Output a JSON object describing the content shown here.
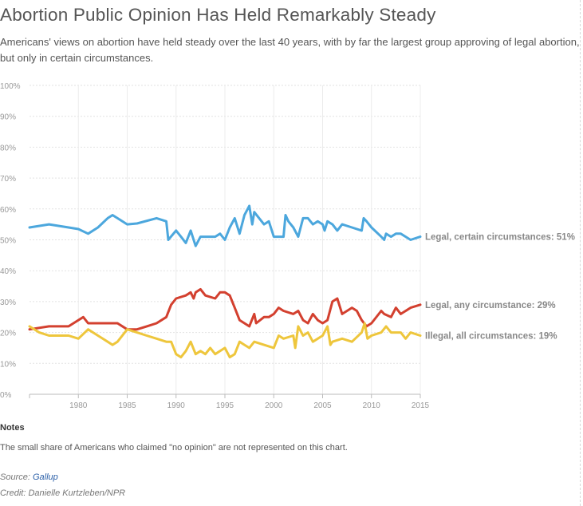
{
  "header": {
    "title": "Abortion Public Opinion Has Held Remarkably Steady",
    "subtitle": "Americans' views on abortion have held steady over the last 40 years, with by far the largest group approving of legal abortion, but only in certain circumstances."
  },
  "chart_data": {
    "type": "line",
    "title": "",
    "xlabel": "",
    "ylabel": "",
    "xlim": [
      1975,
      2015
    ],
    "ylim": [
      0,
      100
    ],
    "x_ticks": [
      1980,
      1985,
      1990,
      1995,
      2000,
      2005,
      2010,
      2015
    ],
    "y_ticks": [
      "0%",
      "10%",
      "20%",
      "30%",
      "40%",
      "50%",
      "60%",
      "70%",
      "80%",
      "90%",
      "100%"
    ],
    "grid": true,
    "legend": "end-of-line labels",
    "series": [
      {
        "name": "Legal, certain circumstances",
        "label": "Legal, certain circumstances: 51%",
        "color": "#4ca7dd",
        "points": [
          [
            1975,
            54
          ],
          [
            1977,
            55
          ],
          [
            1979,
            54
          ],
          [
            1980,
            53.5
          ],
          [
            1981,
            52
          ],
          [
            1982,
            54
          ],
          [
            1983,
            57
          ],
          [
            1983.5,
            58
          ],
          [
            1984,
            57
          ],
          [
            1985,
            55
          ],
          [
            1986,
            55.3
          ],
          [
            1988,
            57
          ],
          [
            1989,
            56
          ],
          [
            1989.2,
            50
          ],
          [
            1990,
            53
          ],
          [
            1990.5,
            51
          ],
          [
            1991,
            49
          ],
          [
            1991.5,
            53
          ],
          [
            1992,
            48
          ],
          [
            1992.5,
            51
          ],
          [
            1993,
            51
          ],
          [
            1994,
            51
          ],
          [
            1994.5,
            52
          ],
          [
            1995,
            50
          ],
          [
            1995.5,
            54
          ],
          [
            1996,
            57
          ],
          [
            1996.5,
            52
          ],
          [
            1997,
            58
          ],
          [
            1997.5,
            61
          ],
          [
            1997.8,
            55
          ],
          [
            1998,
            59
          ],
          [
            1999,
            55
          ],
          [
            1999.5,
            56
          ],
          [
            2000,
            51
          ],
          [
            2001,
            51
          ],
          [
            2001.2,
            58
          ],
          [
            2001.5,
            56
          ],
          [
            2002,
            54
          ],
          [
            2002.5,
            51
          ],
          [
            2003,
            57
          ],
          [
            2003.5,
            57
          ],
          [
            2004,
            55
          ],
          [
            2004.5,
            56
          ],
          [
            2005,
            55
          ],
          [
            2005.2,
            53
          ],
          [
            2005.5,
            56
          ],
          [
            2006,
            55
          ],
          [
            2006.5,
            53
          ],
          [
            2007,
            55
          ],
          [
            2008,
            54
          ],
          [
            2009,
            53
          ],
          [
            2009.2,
            57
          ],
          [
            2009.5,
            56
          ],
          [
            2010,
            54
          ],
          [
            2011,
            51
          ],
          [
            2011.3,
            50
          ],
          [
            2011.5,
            52
          ],
          [
            2012,
            51
          ],
          [
            2012.5,
            52
          ],
          [
            2013,
            52
          ],
          [
            2014,
            50
          ],
          [
            2015,
            51
          ]
        ]
      },
      {
        "name": "Legal, any circumstance",
        "label": "Legal, any circumstance: 29%",
        "color": "#d3402f",
        "points": [
          [
            1975,
            21
          ],
          [
            1977,
            22
          ],
          [
            1979,
            22
          ],
          [
            1980,
            24
          ],
          [
            1980.5,
            25
          ],
          [
            1981,
            23
          ],
          [
            1982,
            23
          ],
          [
            1983,
            23
          ],
          [
            1984,
            23
          ],
          [
            1985,
            21
          ],
          [
            1986,
            21
          ],
          [
            1987,
            22
          ],
          [
            1988,
            23
          ],
          [
            1989,
            25
          ],
          [
            1989.5,
            29
          ],
          [
            1990,
            31
          ],
          [
            1991,
            32
          ],
          [
            1991.5,
            33
          ],
          [
            1991.8,
            31
          ],
          [
            1992,
            33
          ],
          [
            1992.5,
            34
          ],
          [
            1993,
            32
          ],
          [
            1994,
            31
          ],
          [
            1994.5,
            33
          ],
          [
            1995,
            33
          ],
          [
            1995.5,
            32
          ],
          [
            1996,
            28
          ],
          [
            1996.5,
            24
          ],
          [
            1997,
            23
          ],
          [
            1997.5,
            22
          ],
          [
            1998,
            26
          ],
          [
            1998.2,
            23
          ],
          [
            1999,
            25
          ],
          [
            1999.5,
            25
          ],
          [
            2000,
            26
          ],
          [
            2000.5,
            28
          ],
          [
            2001,
            27
          ],
          [
            2002,
            26
          ],
          [
            2002.5,
            27
          ],
          [
            2003,
            24
          ],
          [
            2003.5,
            23
          ],
          [
            2004,
            26
          ],
          [
            2004.5,
            24
          ],
          [
            2005,
            23
          ],
          [
            2005.5,
            24
          ],
          [
            2006,
            30
          ],
          [
            2006.5,
            31
          ],
          [
            2007,
            26
          ],
          [
            2008,
            28
          ],
          [
            2008.5,
            27
          ],
          [
            2009,
            24
          ],
          [
            2009.5,
            22
          ],
          [
            2010,
            23
          ],
          [
            2011,
            27
          ],
          [
            2011.3,
            26
          ],
          [
            2012,
            25
          ],
          [
            2012.5,
            28
          ],
          [
            2013,
            26
          ],
          [
            2014,
            28
          ],
          [
            2015,
            29
          ]
        ]
      },
      {
        "name": "Illegal, all circumstances",
        "label": "Illegal, all circumstances: 19%",
        "color": "#eec63c",
        "points": [
          [
            1975,
            22
          ],
          [
            1976,
            20
          ],
          [
            1977,
            19
          ],
          [
            1978,
            19
          ],
          [
            1979,
            19
          ],
          [
            1980,
            18
          ],
          [
            1981,
            21
          ],
          [
            1982,
            19
          ],
          [
            1983,
            17
          ],
          [
            1983.5,
            16
          ],
          [
            1984,
            17
          ],
          [
            1985,
            21
          ],
          [
            1986,
            20
          ],
          [
            1987,
            19
          ],
          [
            1988,
            18
          ],
          [
            1989,
            17
          ],
          [
            1989.5,
            17
          ],
          [
            1990,
            13
          ],
          [
            1990.5,
            12
          ],
          [
            1991,
            14
          ],
          [
            1991.5,
            17
          ],
          [
            1992,
            13
          ],
          [
            1992.5,
            14
          ],
          [
            1993,
            13
          ],
          [
            1993.5,
            15
          ],
          [
            1994,
            13
          ],
          [
            1995,
            15
          ],
          [
            1995.5,
            12
          ],
          [
            1996,
            13
          ],
          [
            1996.5,
            17
          ],
          [
            1997,
            16
          ],
          [
            1997.5,
            15
          ],
          [
            1998,
            17
          ],
          [
            1999,
            16
          ],
          [
            2000,
            15
          ],
          [
            2000.5,
            19
          ],
          [
            2001,
            18
          ],
          [
            2002,
            19
          ],
          [
            2002.2,
            15
          ],
          [
            2002.5,
            22
          ],
          [
            2003,
            19
          ],
          [
            2003.5,
            20
          ],
          [
            2004,
            17
          ],
          [
            2005,
            19
          ],
          [
            2005.5,
            22
          ],
          [
            2005.8,
            16
          ],
          [
            2006,
            17
          ],
          [
            2007,
            18
          ],
          [
            2008,
            17
          ],
          [
            2009,
            20
          ],
          [
            2009.3,
            23
          ],
          [
            2009.6,
            18
          ],
          [
            2010,
            19
          ],
          [
            2011,
            20
          ],
          [
            2011.5,
            22
          ],
          [
            2012,
            20
          ],
          [
            2013,
            20
          ],
          [
            2013.5,
            18
          ],
          [
            2014,
            20
          ],
          [
            2015,
            19
          ]
        ]
      }
    ]
  },
  "notes": {
    "heading": "Notes",
    "text": "The small share of Americans who claimed \"no opinion\" are not represented on this chart."
  },
  "source": {
    "prefix": "Source: ",
    "name": "Gallup"
  },
  "credit": "Credit: Danielle Kurtzleben/NPR"
}
